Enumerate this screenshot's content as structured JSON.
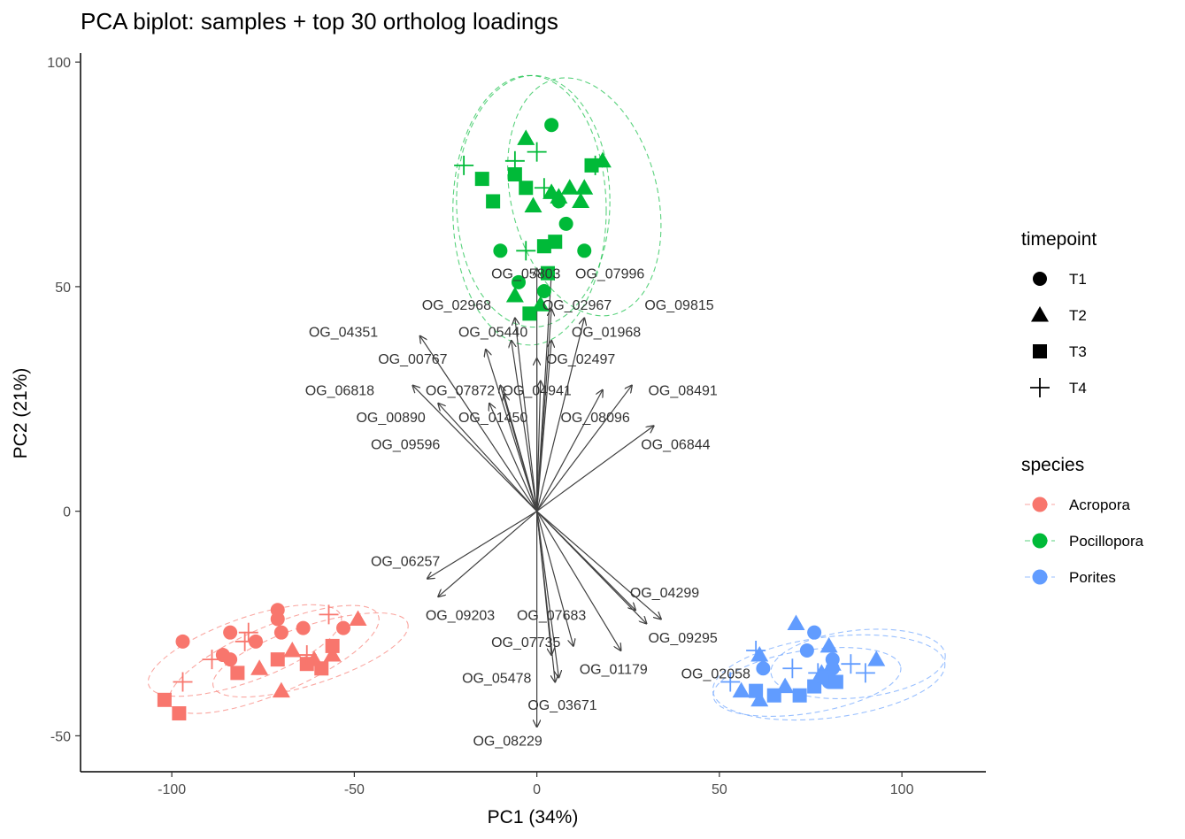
{
  "chart_data": {
    "type": "scatter",
    "title": "PCA biplot: samples + top 30 ortholog loadings",
    "xlabel": "PC1 (34%)",
    "ylabel": "PC2 (21%)",
    "xlim": [
      -125,
      123
    ],
    "ylim": [
      -58,
      102
    ],
    "xticks": [
      -100,
      -50,
      0,
      50,
      100
    ],
    "yticks": [
      -50,
      0,
      50,
      100
    ],
    "xtick_labels": [
      "-100",
      "-50",
      "0",
      "50",
      "100"
    ],
    "ytick_labels": [
      "-50",
      "0",
      "50",
      "100"
    ],
    "grid": false,
    "legend_position": "right",
    "legend_timepoint": {
      "title": "timepoint",
      "entries": [
        {
          "label": "T1",
          "shape": "circle"
        },
        {
          "label": "T2",
          "shape": "triangle"
        },
        {
          "label": "T3",
          "shape": "square"
        },
        {
          "label": "T4",
          "shape": "plus"
        }
      ]
    },
    "legend_species": {
      "title": "species",
      "entries": [
        {
          "label": "Acropora",
          "color": "#F8766D"
        },
        {
          "label": "Pocillopora",
          "color": "#00BA38"
        },
        {
          "label": "Porites",
          "color": "#619CFF"
        }
      ]
    },
    "ellipses": [
      {
        "species": "Acropora",
        "cx": -72,
        "cy": -33,
        "rx": 31,
        "ry": 7.5,
        "angle": 23
      },
      {
        "species": "Acropora",
        "cx": -80,
        "cy": -31,
        "rx": 28,
        "ry": 7,
        "angle": 20
      },
      {
        "species": "Acropora",
        "cx": -62,
        "cy": -32,
        "rx": 28,
        "ry": 6.5,
        "angle": 18
      },
      {
        "species": "Pocillopora",
        "cx": -2,
        "cy": 67,
        "rx": 21,
        "ry": 30,
        "angle": 0
      },
      {
        "species": "Pocillopora",
        "cx": -1,
        "cy": 69,
        "rx": 21,
        "ry": 28,
        "angle": 0
      },
      {
        "species": "Pocillopora",
        "cx": 13,
        "cy": 70,
        "rx": 20,
        "ry": 27,
        "angle": 14
      },
      {
        "species": "Porites",
        "cx": 80,
        "cy": -37,
        "rx": 32,
        "ry": 9,
        "angle": 7
      },
      {
        "species": "Porites",
        "cx": 88,
        "cy": -34,
        "rx": 24,
        "ry": 7.5,
        "angle": 6
      },
      {
        "species": "Porites",
        "cx": 74,
        "cy": -38,
        "rx": 26,
        "ry": 7,
        "angle": 9
      }
    ],
    "samples": [
      {
        "species": "Acropora",
        "timepoint": "T1",
        "x": -97,
        "y": -29
      },
      {
        "species": "Acropora",
        "timepoint": "T1",
        "x": -84,
        "y": -27
      },
      {
        "species": "Acropora",
        "timepoint": "T1",
        "x": -86,
        "y": -32
      },
      {
        "species": "Acropora",
        "timepoint": "T1",
        "x": -84,
        "y": -33
      },
      {
        "species": "Acropora",
        "timepoint": "T1",
        "x": -71,
        "y": -22
      },
      {
        "species": "Acropora",
        "timepoint": "T1",
        "x": -71,
        "y": -24
      },
      {
        "species": "Acropora",
        "timepoint": "T1",
        "x": -70,
        "y": -27
      },
      {
        "species": "Acropora",
        "timepoint": "T1",
        "x": -77,
        "y": -29
      },
      {
        "species": "Acropora",
        "timepoint": "T1",
        "x": -64,
        "y": -26
      },
      {
        "species": "Acropora",
        "timepoint": "T1",
        "x": -53,
        "y": -26
      },
      {
        "species": "Acropora",
        "timepoint": "T2",
        "x": -49,
        "y": -24
      },
      {
        "species": "Acropora",
        "timepoint": "T2",
        "x": -76,
        "y": -35
      },
      {
        "species": "Acropora",
        "timepoint": "T2",
        "x": -67,
        "y": -31
      },
      {
        "species": "Acropora",
        "timepoint": "T2",
        "x": -61,
        "y": -33
      },
      {
        "species": "Acropora",
        "timepoint": "T2",
        "x": -56,
        "y": -32
      },
      {
        "species": "Acropora",
        "timepoint": "T2",
        "x": -70,
        "y": -40
      },
      {
        "species": "Acropora",
        "timepoint": "T3",
        "x": -102,
        "y": -42
      },
      {
        "species": "Acropora",
        "timepoint": "T3",
        "x": -98,
        "y": -45
      },
      {
        "species": "Acropora",
        "timepoint": "T3",
        "x": -82,
        "y": -36
      },
      {
        "species": "Acropora",
        "timepoint": "T3",
        "x": -71,
        "y": -33
      },
      {
        "species": "Acropora",
        "timepoint": "T3",
        "x": -63,
        "y": -34
      },
      {
        "species": "Acropora",
        "timepoint": "T3",
        "x": -59,
        "y": -35
      },
      {
        "species": "Acropora",
        "timepoint": "T3",
        "x": -56,
        "y": -30
      },
      {
        "species": "Acropora",
        "timepoint": "T4",
        "x": -97,
        "y": -38
      },
      {
        "species": "Acropora",
        "timepoint": "T4",
        "x": -89,
        "y": -33
      },
      {
        "species": "Acropora",
        "timepoint": "T4",
        "x": -80,
        "y": -29
      },
      {
        "species": "Acropora",
        "timepoint": "T4",
        "x": -79,
        "y": -27
      },
      {
        "species": "Acropora",
        "timepoint": "T4",
        "x": -57,
        "y": -23
      },
      {
        "species": "Acropora",
        "timepoint": "T4",
        "x": -63,
        "y": -32
      },
      {
        "species": "Pocillopora",
        "timepoint": "T1",
        "x": 4,
        "y": 86
      },
      {
        "species": "Pocillopora",
        "timepoint": "T1",
        "x": -10,
        "y": 58
      },
      {
        "species": "Pocillopora",
        "timepoint": "T1",
        "x": 13,
        "y": 58
      },
      {
        "species": "Pocillopora",
        "timepoint": "T1",
        "x": 8,
        "y": 64
      },
      {
        "species": "Pocillopora",
        "timepoint": "T1",
        "x": 6,
        "y": 69
      },
      {
        "species": "Pocillopora",
        "timepoint": "T1",
        "x": -5,
        "y": 51
      },
      {
        "species": "Pocillopora",
        "timepoint": "T1",
        "x": 2,
        "y": 49
      },
      {
        "species": "Pocillopora",
        "timepoint": "T2",
        "x": -3,
        "y": 83
      },
      {
        "species": "Pocillopora",
        "timepoint": "T2",
        "x": 4,
        "y": 71
      },
      {
        "species": "Pocillopora",
        "timepoint": "T2",
        "x": 6,
        "y": 70
      },
      {
        "species": "Pocillopora",
        "timepoint": "T2",
        "x": 9,
        "y": 72
      },
      {
        "species": "Pocillopora",
        "timepoint": "T2",
        "x": 13,
        "y": 72
      },
      {
        "species": "Pocillopora",
        "timepoint": "T2",
        "x": 12,
        "y": 69
      },
      {
        "species": "Pocillopora",
        "timepoint": "T2",
        "x": 18,
        "y": 78
      },
      {
        "species": "Pocillopora",
        "timepoint": "T2",
        "x": -1,
        "y": 68
      },
      {
        "species": "Pocillopora",
        "timepoint": "T2",
        "x": -6,
        "y": 48
      },
      {
        "species": "Pocillopora",
        "timepoint": "T2",
        "x": 1,
        "y": 46
      },
      {
        "species": "Pocillopora",
        "timepoint": "T3",
        "x": -15,
        "y": 74
      },
      {
        "species": "Pocillopora",
        "timepoint": "T3",
        "x": -12,
        "y": 69
      },
      {
        "species": "Pocillopora",
        "timepoint": "T3",
        "x": -6,
        "y": 75
      },
      {
        "species": "Pocillopora",
        "timepoint": "T3",
        "x": -3,
        "y": 72
      },
      {
        "species": "Pocillopora",
        "timepoint": "T3",
        "x": 15,
        "y": 77
      },
      {
        "species": "Pocillopora",
        "timepoint": "T3",
        "x": 2,
        "y": 59
      },
      {
        "species": "Pocillopora",
        "timepoint": "T3",
        "x": 5,
        "y": 60
      },
      {
        "species": "Pocillopora",
        "timepoint": "T3",
        "x": 3,
        "y": 53
      },
      {
        "species": "Pocillopora",
        "timepoint": "T3",
        "x": -2,
        "y": 44
      },
      {
        "species": "Pocillopora",
        "timepoint": "T4",
        "x": -20,
        "y": 77
      },
      {
        "species": "Pocillopora",
        "timepoint": "T4",
        "x": -6,
        "y": 78
      },
      {
        "species": "Pocillopora",
        "timepoint": "T4",
        "x": 0,
        "y": 80
      },
      {
        "species": "Pocillopora",
        "timepoint": "T4",
        "x": 2,
        "y": 72
      },
      {
        "species": "Pocillopora",
        "timepoint": "T4",
        "x": -3,
        "y": 58
      },
      {
        "species": "Pocillopora",
        "timepoint": "T4",
        "x": 16,
        "y": 77
      },
      {
        "species": "Porites",
        "timepoint": "T1",
        "x": 76,
        "y": -27
      },
      {
        "species": "Porites",
        "timepoint": "T1",
        "x": 74,
        "y": -31
      },
      {
        "species": "Porites",
        "timepoint": "T1",
        "x": 62,
        "y": -35
      },
      {
        "species": "Porites",
        "timepoint": "T1",
        "x": 81,
        "y": -33
      },
      {
        "species": "Porites",
        "timepoint": "T1",
        "x": 81,
        "y": -35
      },
      {
        "species": "Porites",
        "timepoint": "T1",
        "x": 80,
        "y": -38
      },
      {
        "species": "Porites",
        "timepoint": "T2",
        "x": 71,
        "y": -25
      },
      {
        "species": "Porites",
        "timepoint": "T2",
        "x": 61,
        "y": -32
      },
      {
        "species": "Porites",
        "timepoint": "T2",
        "x": 80,
        "y": -30
      },
      {
        "species": "Porites",
        "timepoint": "T2",
        "x": 93,
        "y": -33
      },
      {
        "species": "Porites",
        "timepoint": "T2",
        "x": 56,
        "y": -40
      },
      {
        "species": "Porites",
        "timepoint": "T2",
        "x": 61,
        "y": -42
      },
      {
        "species": "Porites",
        "timepoint": "T2",
        "x": 68,
        "y": -39
      },
      {
        "species": "Porites",
        "timepoint": "T2",
        "x": 78,
        "y": -36
      },
      {
        "species": "Porites",
        "timepoint": "T2",
        "x": 81,
        "y": -34
      },
      {
        "species": "Porites",
        "timepoint": "T3",
        "x": 60,
        "y": -40
      },
      {
        "species": "Porites",
        "timepoint": "T3",
        "x": 65,
        "y": -41
      },
      {
        "species": "Porites",
        "timepoint": "T3",
        "x": 72,
        "y": -41
      },
      {
        "species": "Porites",
        "timepoint": "T3",
        "x": 76,
        "y": -39
      },
      {
        "species": "Porites",
        "timepoint": "T3",
        "x": 79,
        "y": -37
      },
      {
        "species": "Porites",
        "timepoint": "T3",
        "x": 82,
        "y": -38
      },
      {
        "species": "Porites",
        "timepoint": "T4",
        "x": 53,
        "y": -38
      },
      {
        "species": "Porites",
        "timepoint": "T4",
        "x": 60,
        "y": -31
      },
      {
        "species": "Porites",
        "timepoint": "T4",
        "x": 70,
        "y": -35
      },
      {
        "species": "Porites",
        "timepoint": "T4",
        "x": 77,
        "y": -36
      },
      {
        "species": "Porites",
        "timepoint": "T4",
        "x": 86,
        "y": -34
      },
      {
        "species": "Porites",
        "timepoint": "T4",
        "x": 90,
        "y": -36
      }
    ],
    "loadings": [
      {
        "label": "OG_05803",
        "x": 0,
        "y": 54,
        "lx": -3,
        "ly": 53
      },
      {
        "label": "OG_07996",
        "x": 4,
        "y": 53,
        "lx": 20,
        "ly": 53
      },
      {
        "label": "OG_02968",
        "x": -6,
        "y": 43,
        "lx": -22,
        "ly": 46
      },
      {
        "label": "OG_02967",
        "x": 4,
        "y": 45,
        "lx": 11,
        "ly": 46
      },
      {
        "label": "OG_09815",
        "x": 13,
        "y": 43,
        "lx": 39,
        "ly": 46
      },
      {
        "label": "OG_04351",
        "x": -32,
        "y": 39,
        "lx": -53,
        "ly": 40
      },
      {
        "label": "OG_05440",
        "x": -7,
        "y": 38,
        "lx": -12,
        "ly": 40
      },
      {
        "label": "OG_01968",
        "x": 4,
        "y": 38,
        "lx": 19,
        "ly": 40
      },
      {
        "label": "OG_00767",
        "x": -14,
        "y": 36,
        "lx": -34,
        "ly": 34
      },
      {
        "label": "OG_02497",
        "x": 0,
        "y": 34,
        "lx": 12,
        "ly": 34
      },
      {
        "label": "OG_06818",
        "x": -34,
        "y": 28,
        "lx": -54,
        "ly": 27
      },
      {
        "label": "OG_07872",
        "x": -10,
        "y": 28,
        "lx": -21,
        "ly": 27
      },
      {
        "label": "OG_04941",
        "x": 1,
        "y": 29,
        "lx": 0,
        "ly": 27
      },
      {
        "label": "OG_08491",
        "x": 26,
        "y": 28,
        "lx": 40,
        "ly": 27
      },
      {
        "label": "OG_00890",
        "x": -27,
        "y": 24,
        "lx": -40,
        "ly": 21
      },
      {
        "label": "OG_01450",
        "x": -9,
        "y": 26,
        "lx": -12,
        "ly": 21
      },
      {
        "label": "OG_08096",
        "x": 18,
        "y": 27,
        "lx": 16,
        "ly": 21
      },
      {
        "label": "OG_09596",
        "x": -13,
        "y": 24,
        "lx": -36,
        "ly": 15
      },
      {
        "label": "OG_06844",
        "x": 32,
        "y": 19,
        "lx": 38,
        "ly": 15
      },
      {
        "label": "OG_06257",
        "x": -30,
        "y": -15,
        "lx": -36,
        "ly": -11
      },
      {
        "label": "OG_09203",
        "x": -27,
        "y": -19,
        "lx": -21,
        "ly": -23
      },
      {
        "label": "OG_04299",
        "x": 27,
        "y": -22,
        "lx": 35,
        "ly": -18
      },
      {
        "label": "OG_07683",
        "x": 10,
        "y": -30,
        "lx": 4,
        "ly": -23
      },
      {
        "label": "OG_07735",
        "x": 4,
        "y": -32,
        "lx": -3,
        "ly": -29
      },
      {
        "label": "OG_09295",
        "x": 34,
        "y": -24,
        "lx": 40,
        "ly": -28
      },
      {
        "label": "OG_01179",
        "x": 23,
        "y": -31,
        "lx": 21,
        "ly": -35
      },
      {
        "label": "OG_05478",
        "x": 5,
        "y": -38,
        "lx": -11,
        "ly": -37
      },
      {
        "label": "OG_02058",
        "x": 30,
        "y": -25,
        "lx": 49,
        "ly": -36
      },
      {
        "label": "OG_03671",
        "x": 6,
        "y": -37,
        "lx": 7,
        "ly": -43
      },
      {
        "label": "OG_08229",
        "x": 0,
        "y": -48,
        "lx": -8,
        "ly": -51
      }
    ]
  }
}
